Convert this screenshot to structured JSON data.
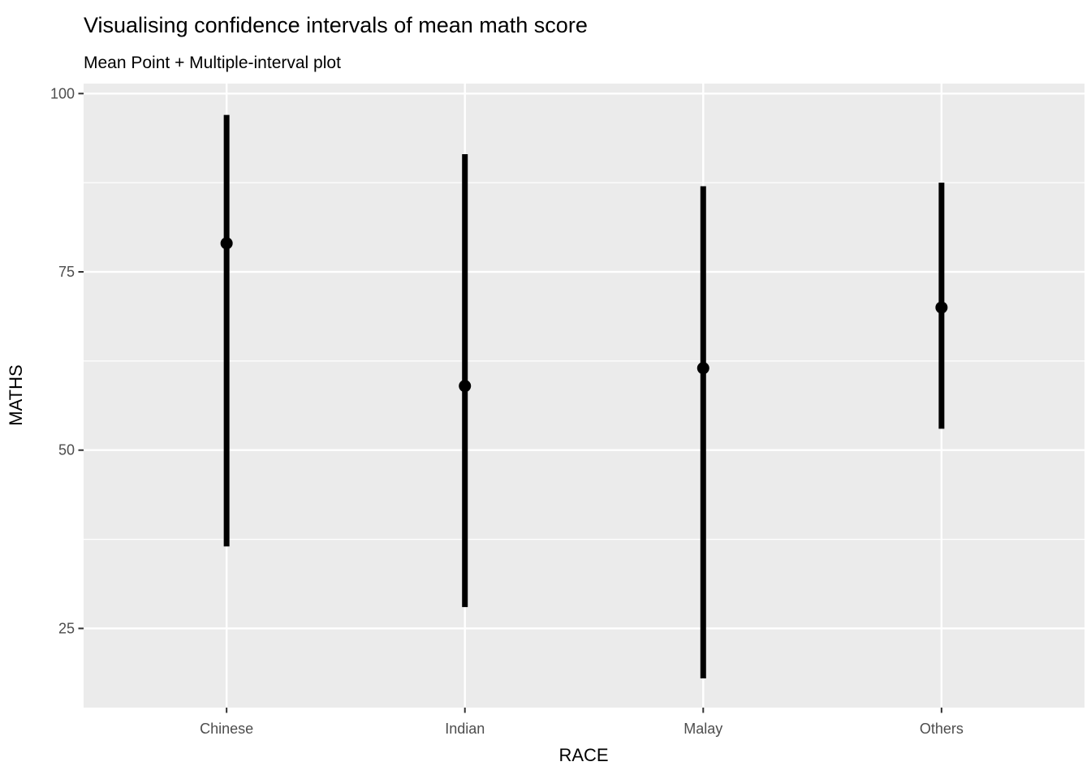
{
  "chart_data": {
    "type": "scatter",
    "variant": "mean-point-with-multiple-confidence-intervals",
    "title": "Visualising confidence intervals of mean math score",
    "subtitle": "Mean Point + Multiple-interval plot",
    "xlabel": "RACE",
    "ylabel": "MATHS",
    "categories": [
      "Chinese",
      "Indian",
      "Malay",
      "Others"
    ],
    "series": [
      {
        "name": "mean_point",
        "values": [
          79,
          59,
          61.5,
          70
        ]
      },
      {
        "name": "interval_lower",
        "values": [
          36.5,
          28,
          18,
          53
        ]
      },
      {
        "name": "interval_upper",
        "values": [
          97,
          91.5,
          87,
          87.5
        ]
      }
    ],
    "ylim": [
      13.9,
      101.4
    ],
    "yticks": [
      25,
      50,
      75,
      100
    ],
    "ytick_step": 25,
    "grid": {
      "horizontal": "major+minor",
      "vertical": "major-at-categories",
      "minor_between_majors": true
    },
    "legend": "none",
    "colors": {
      "point": "#000000",
      "interval": "#000000",
      "panel_bg": "#EBEBEB",
      "grid": "#FFFFFF",
      "tick_label": "#4D4D4D",
      "axis_tick": "#333333",
      "title": "#000000",
      "page_bg": "#FFFFFF"
    }
  }
}
